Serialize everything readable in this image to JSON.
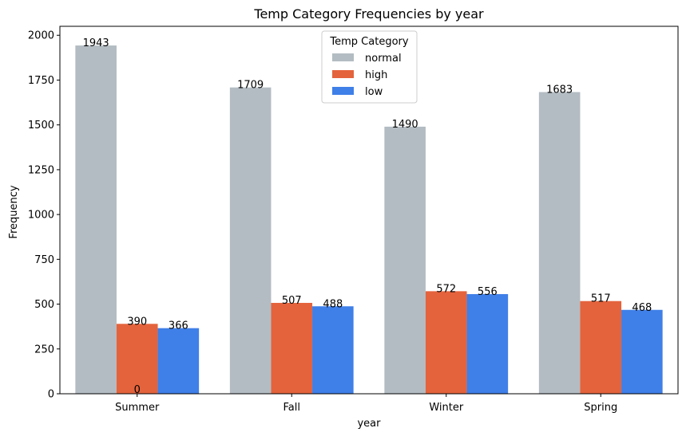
{
  "chart_data": {
    "type": "bar",
    "title": "Temp Category Frequencies by year",
    "xlabel": "year",
    "ylabel": "Frequency",
    "ylim": [
      0,
      2050
    ],
    "yticks": [
      "0",
      "250",
      "500",
      "750",
      "1000",
      "1250",
      "1500",
      "1750",
      "2000"
    ],
    "categories": [
      "Summer",
      "Fall",
      "Winter",
      "Spring"
    ],
    "series": [
      {
        "name": "normal",
        "color": "#b3bcc2",
        "values": [
          1943,
          1709,
          1490,
          1683
        ]
      },
      {
        "name": "high",
        "color": "#e4633c",
        "values": [
          390,
          507,
          572,
          517
        ]
      },
      {
        "name": "low",
        "color": "#3f7fe8",
        "values": [
          366,
          488,
          556,
          468
        ]
      }
    ],
    "extra_label": {
      "text": "0",
      "category": "Summer",
      "value": 0
    },
    "legend": {
      "title": "Temp Category",
      "placement": "top-center"
    },
    "grid": false
  }
}
